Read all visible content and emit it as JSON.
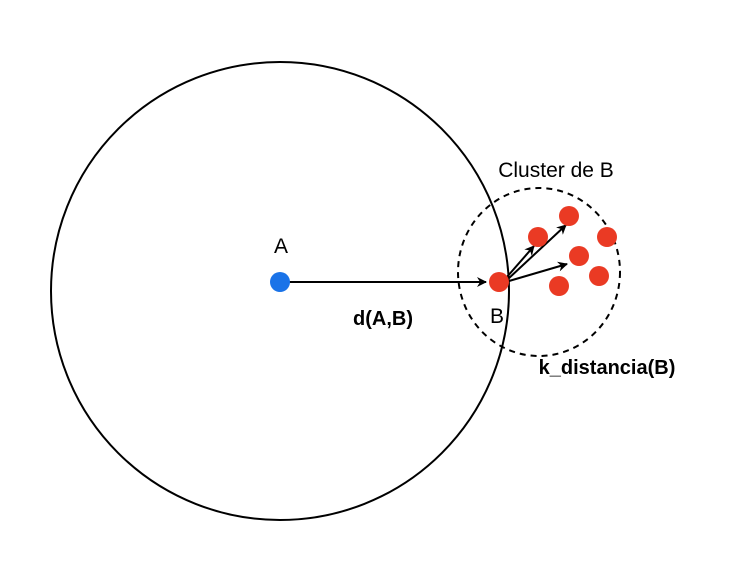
{
  "colors": {
    "point_a": "#1a73e8",
    "cluster_points": "#ea3a24",
    "stroke": "#000000",
    "background": "#ffffff"
  },
  "labels": {
    "point_a": "A",
    "point_b": "B",
    "distance": "d(A,B)",
    "cluster": "Cluster de B",
    "k_distance": "k_distancia(B)"
  }
}
